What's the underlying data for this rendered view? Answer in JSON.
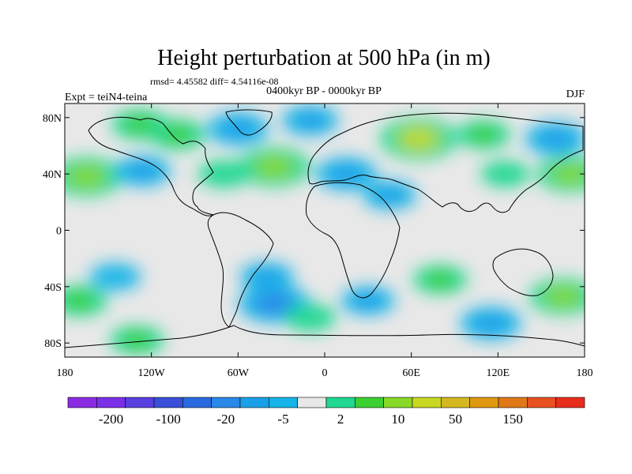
{
  "chart_data": {
    "type": "heatmap",
    "title": "Height perturbation at 500 hPa (in m)",
    "subtitle_stats": "rmsd= 4.45582 diff= 4.54116e-08",
    "period": "0400kyr BP - 0000kyr BP",
    "experiment": "Expt = teiN4-teina",
    "season": "DJF",
    "xlim": [
      -180,
      180
    ],
    "ylim": [
      -90,
      90
    ],
    "x_ticks": [
      {
        "value": -180,
        "label": "180"
      },
      {
        "value": -120,
        "label": "120W"
      },
      {
        "value": -60,
        "label": "60W"
      },
      {
        "value": 0,
        "label": "0"
      },
      {
        "value": 60,
        "label": "60E"
      },
      {
        "value": 120,
        "label": "120E"
      },
      {
        "value": 180,
        "label": "180"
      }
    ],
    "y_ticks": [
      {
        "value": 80,
        "label": "80N"
      },
      {
        "value": 40,
        "label": "40N"
      },
      {
        "value": 0,
        "label": "0"
      },
      {
        "value": -40,
        "label": "40S"
      },
      {
        "value": -80,
        "label": "80S"
      }
    ],
    "colorbar": {
      "colors": [
        "#8a2be2",
        "#7b30e8",
        "#5a3fe0",
        "#3a4fd8",
        "#2a6ae0",
        "#2a88e8",
        "#1aa0e8",
        "#16b4e8",
        "#e8e8e8",
        "#20d890",
        "#3cd030",
        "#88d828",
        "#c8d820",
        "#d4b820",
        "#e09810",
        "#e07818",
        "#e85020",
        "#e82c1c"
      ],
      "labels": [
        "-200",
        "-100",
        "-20",
        "-5",
        "2",
        "10",
        "50",
        "150"
      ]
    },
    "anomalies": [
      {
        "lon": -165,
        "lat": 38,
        "value": 12
      },
      {
        "lon": -126,
        "lat": 42,
        "value": -6
      },
      {
        "lon": -128,
        "lat": 75,
        "value": 6
      },
      {
        "lon": -102,
        "lat": 68,
        "value": 6
      },
      {
        "lon": -70,
        "lat": 40,
        "value": 4
      },
      {
        "lon": -60,
        "lat": 72,
        "value": -8
      },
      {
        "lon": -35,
        "lat": 45,
        "value": 12
      },
      {
        "lon": -10,
        "lat": 78,
        "value": -6
      },
      {
        "lon": 15,
        "lat": 40,
        "value": -8
      },
      {
        "lon": 45,
        "lat": 25,
        "value": -5
      },
      {
        "lon": 65,
        "lat": 65,
        "value": 20
      },
      {
        "lon": 110,
        "lat": 68,
        "value": 5
      },
      {
        "lon": 160,
        "lat": 65,
        "value": -8
      },
      {
        "lon": 125,
        "lat": 40,
        "value": 3
      },
      {
        "lon": 170,
        "lat": 40,
        "value": 10
      },
      {
        "lon": -145,
        "lat": -33,
        "value": -4
      },
      {
        "lon": -170,
        "lat": -50,
        "value": 6
      },
      {
        "lon": -35,
        "lat": -52,
        "value": -12
      },
      {
        "lon": -40,
        "lat": -33,
        "value": -5
      },
      {
        "lon": -10,
        "lat": -62,
        "value": 4
      },
      {
        "lon": 30,
        "lat": -50,
        "value": -5
      },
      {
        "lon": 80,
        "lat": -35,
        "value": 5
      },
      {
        "lon": 115,
        "lat": -66,
        "value": -8
      },
      {
        "lon": 165,
        "lat": -47,
        "value": 10
      },
      {
        "lon": -130,
        "lat": -78,
        "value": 5
      }
    ]
  }
}
